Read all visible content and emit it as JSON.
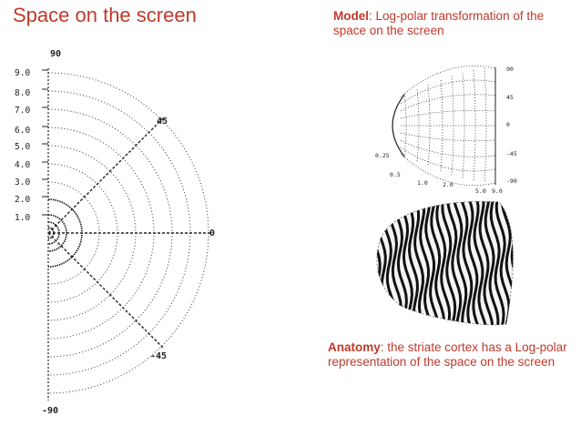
{
  "screen": {
    "title": "Space on the screen",
    "angle_labels": [
      "90",
      "45",
      "0",
      "-45",
      "-90"
    ],
    "eccentricity_labels": [
      "9.0",
      "8.0",
      "7.0",
      "6.0",
      "5.0",
      "4.0",
      "3.0",
      "2.0",
      "1.0"
    ]
  },
  "model": {
    "label_bold": "Model",
    "caption": ": Log-polar transformation of the space on the screen",
    "angle_labels": [
      "90",
      "45",
      "0",
      "-45",
      "-90"
    ],
    "eccentricity_labels": [
      "0.25",
      "0.5",
      "1.0",
      "2.0",
      "5.0",
      "9.0"
    ]
  },
  "anatomy": {
    "label_bold": "Anatomy",
    "caption": ": the striate cortex has a Log-polar representation of the space on the screen"
  },
  "colors": {
    "accent": "#c0392b",
    "ink": "#222222"
  }
}
